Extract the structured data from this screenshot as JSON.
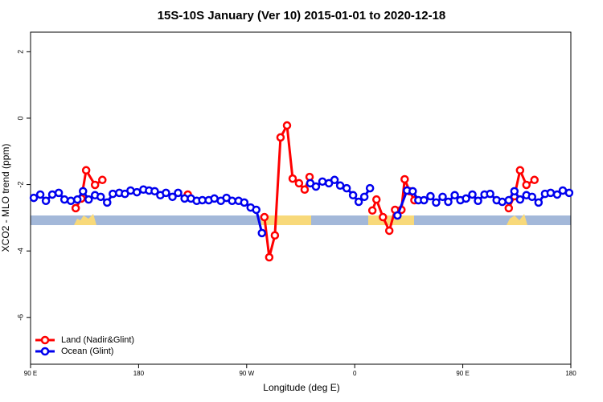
{
  "chart_data": {
    "type": "line",
    "title": "15S-10S January (Ver 10)   2015-01-01 to 2020-12-18",
    "x_label": "Longitude (deg E)",
    "y_label": "XCO2 - MLO trend (ppm)",
    "xlim": [
      90,
      540
    ],
    "ylim": [
      -7.41,
      2.59
    ],
    "xticks": [
      {
        "value": 90,
        "label": "90 E"
      },
      {
        "value": 180,
        "label": "180"
      },
      {
        "value": 270,
        "label": "90 W"
      },
      {
        "value": 360,
        "label": "0"
      },
      {
        "value": 450,
        "label": "90 E"
      },
      {
        "value": 540,
        "label": "180"
      }
    ],
    "yticks": [
      2,
      0,
      -2,
      -4,
      -6
    ],
    "legend": "bottom-left",
    "series": [
      {
        "name": "Land (Nadir&Glint)",
        "color": "#ff0000",
        "x": [
          127.6,
          132.3,
          136.3,
          143.7,
          149.8,
          null,
          221.0,
          null,
          284.8,
          288.8,
          293.5,
          298.2,
          303.6,
          308.3,
          313.6,
          318.3,
          322.4,
          null,
          374.7,
          378.1,
          383.5,
          388.8,
          393.6,
          398.9,
          401.6,
          405.7,
          409.7,
          null,
          488.3,
          493.0,
          497.7,
          503.0,
          509.7
        ],
        "values": [
          -2.71,
          -2.42,
          -1.57,
          -2.01,
          -1.86,
          null,
          -2.3,
          null,
          -2.98,
          -4.19,
          -3.53,
          -0.58,
          -0.22,
          -1.82,
          -1.96,
          -2.15,
          -1.77,
          null,
          -2.78,
          -2.45,
          -2.98,
          -3.39,
          -2.76,
          -2.76,
          -1.84,
          -2.2,
          -2.47,
          null,
          -2.71,
          -2.35,
          -1.57,
          -2.01,
          -1.86
        ]
      },
      {
        "name": "Ocean (Glint)",
        "color": "#0000ee",
        "x": [
          92.7,
          98.1,
          102.8,
          108.1,
          113.5,
          118.2,
          123.6,
          129.0,
          133.7,
          138.4,
          143.7,
          148.4,
          153.8,
          158.5,
          163.9,
          168.6,
          173.3,
          178.6,
          184.0,
          188.7,
          193.4,
          198.1,
          202.8,
          208.2,
          212.9,
          218.3,
          223.6,
          228.4,
          233.1,
          238.4,
          243.1,
          248.5,
          253.2,
          257.9,
          263.3,
          268.0,
          273.3,
          278.0,
          282.7,
          null,
          323.0,
          327.7,
          333.1,
          338.5,
          343.2,
          347.9,
          353.3,
          358.6,
          363.3,
          368.0,
          372.7,
          null,
          395.6,
          403.6,
          408.3,
          413.0,
          417.7,
          423.1,
          427.8,
          433.2,
          437.9,
          443.3,
          448.0,
          452.7,
          458.0,
          462.7,
          468.1,
          472.8,
          478.2,
          482.9,
          488.3,
          493.0,
          497.7,
          503.0,
          507.7,
          513.1,
          518.5,
          523.2,
          528.6,
          533.3,
          538.6
        ],
        "values": [
          -2.4,
          -2.3,
          -2.49,
          -2.3,
          -2.25,
          -2.45,
          -2.49,
          -2.45,
          -2.2,
          -2.45,
          -2.32,
          -2.37,
          -2.54,
          -2.28,
          -2.25,
          -2.28,
          -2.18,
          -2.23,
          -2.15,
          -2.18,
          -2.2,
          -2.32,
          -2.25,
          -2.37,
          -2.25,
          -2.42,
          -2.42,
          -2.49,
          -2.47,
          -2.47,
          -2.42,
          -2.49,
          -2.4,
          -2.49,
          -2.49,
          -2.54,
          -2.69,
          -2.76,
          -3.46,
          null,
          -1.96,
          -2.06,
          -1.91,
          -1.96,
          -1.86,
          -2.03,
          -2.11,
          -2.32,
          -2.52,
          -2.37,
          -2.11,
          null,
          -2.93,
          -2.18,
          -2.2,
          -2.47,
          -2.47,
          -2.35,
          -2.54,
          -2.37,
          -2.52,
          -2.32,
          -2.47,
          -2.42,
          -2.3,
          -2.49,
          -2.3,
          -2.28,
          -2.47,
          -2.52,
          -2.47,
          -2.2,
          -2.45,
          -2.32,
          -2.37,
          -2.54,
          -2.28,
          -2.25,
          -2.3,
          -2.18,
          -2.25
        ]
      }
    ]
  }
}
